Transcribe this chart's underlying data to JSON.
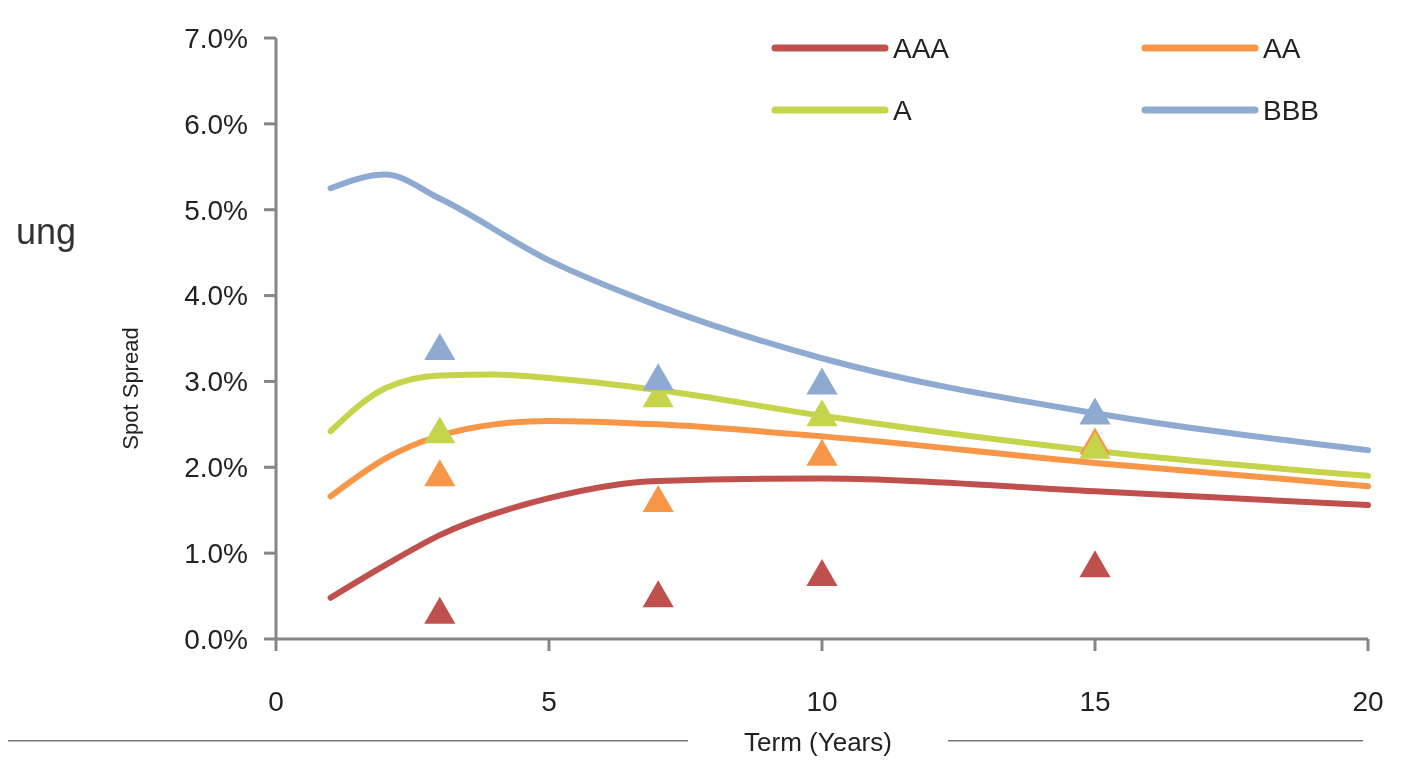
{
  "chart_data": {
    "type": "line",
    "xlabel": "Term (Years)",
    "ylabel": "Spot Spread",
    "annotations": [
      "ung"
    ],
    "xlim": [
      0,
      20
    ],
    "xticks": [
      0,
      5,
      10,
      15,
      20
    ],
    "ylim": [
      0,
      7
    ],
    "yticks": [
      {
        "value": 0,
        "label": "0.0%"
      },
      {
        "value": 1,
        "label": "1.0%"
      },
      {
        "value": 2,
        "label": "2.0%"
      },
      {
        "value": 3,
        "label": "3.0%"
      },
      {
        "value": 4,
        "label": "4.0%"
      },
      {
        "value": 5,
        "label": "5.0%"
      },
      {
        "value": 6,
        "label": "6.0%"
      },
      {
        "value": 7,
        "label": "7.0%"
      }
    ],
    "grid": false,
    "legend": "top right",
    "marker": "none",
    "line_style": "solid",
    "series": [
      {
        "name": "AAA",
        "color": "#c0504d",
        "x": [
          1,
          2,
          3,
          5,
          7,
          10,
          15,
          20
        ],
        "values": [
          0.48,
          0.86,
          1.21,
          1.64,
          1.84,
          1.87,
          1.72,
          1.56
        ]
      },
      {
        "name": "AA",
        "color": "#f79646",
        "x": [
          1,
          2,
          4,
          5,
          7,
          10,
          15,
          20
        ],
        "values": [
          1.66,
          2.1,
          2.5,
          2.54,
          2.5,
          2.36,
          2.05,
          1.78
        ]
      },
      {
        "name": "A",
        "color": "#c5d44a",
        "x": [
          1,
          2,
          3,
          4,
          5,
          7,
          10,
          15,
          20
        ],
        "values": [
          2.42,
          2.92,
          3.07,
          3.08,
          3.04,
          2.9,
          2.6,
          2.19,
          1.9
        ]
      },
      {
        "name": "BBB",
        "color": "#8eaad0",
        "x": [
          1,
          2,
          3,
          5,
          7,
          10,
          15,
          20
        ],
        "values": [
          5.25,
          5.41,
          5.13,
          4.41,
          3.88,
          3.27,
          2.63,
          2.2
        ]
      },
      {
        "type": "scatter",
        "marker": "triangle",
        "color": "#c0504d",
        "x": [
          3,
          7,
          10,
          15
        ],
        "values": [
          0.33,
          0.52,
          0.77,
          0.87
        ]
      },
      {
        "type": "scatter",
        "marker": "triangle",
        "color": "#f79646",
        "x": [
          3,
          7,
          10,
          15
        ],
        "values": [
          1.93,
          1.63,
          2.17,
          2.3
        ]
      },
      {
        "type": "scatter",
        "marker": "triangle",
        "color": "#c5d44a",
        "x": [
          3,
          7,
          10,
          15
        ],
        "values": [
          2.43,
          2.85,
          2.63,
          2.25
        ]
      },
      {
        "type": "scatter",
        "marker": "triangle",
        "color": "#8eaad0",
        "x": [
          3,
          7,
          10,
          15
        ],
        "values": [
          3.4,
          3.05,
          3.0,
          2.65
        ]
      }
    ]
  }
}
